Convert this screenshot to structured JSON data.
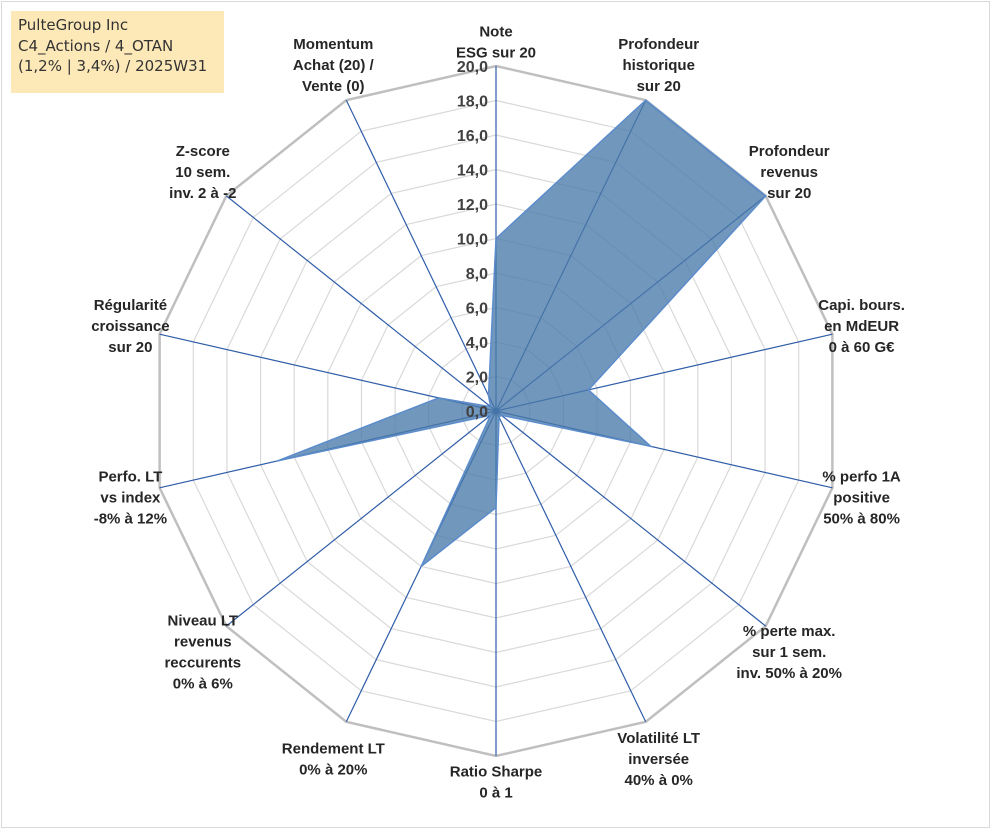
{
  "info_box": {
    "line1": "PulteGroup Inc",
    "line2": "C4_Actions / 4_OTAN",
    "line3": "(1,2% | 3,4%) / 2025W31"
  },
  "chart_data": {
    "type": "radar",
    "title": "",
    "rmin": 0,
    "rmax": 20,
    "tick_step": 2,
    "ticks": [
      "0,0",
      "2,0",
      "4,0",
      "6,0",
      "8,0",
      "10,0",
      "12,0",
      "14,0",
      "16,0",
      "18,0",
      "20,0"
    ],
    "axes": [
      {
        "label": [
          "Note",
          "ESG sur 20"
        ],
        "value": 10.0
      },
      {
        "label": [
          "Profondeur",
          "historique",
          "sur 20"
        ],
        "value": 20.0
      },
      {
        "label": [
          "Profondeur",
          "revenus",
          "sur 20"
        ],
        "value": 20.0
      },
      {
        "label": [
          "Capi. bours.",
          "en MdEUR",
          "0 à 60 G€"
        ],
        "value": 5.5
      },
      {
        "label": [
          "% perfo 1A",
          "positive",
          "50% à 80%"
        ],
        "value": 9.2
      },
      {
        "label": [
          "% perte max.",
          "sur 1 sem.",
          "inv. 50% à 20%"
        ],
        "value": 0.4
      },
      {
        "label": [
          "Volatilité LT",
          "inversée",
          "40% à 0%"
        ],
        "value": 0.4
      },
      {
        "label": [
          "Ratio Sharpe",
          "0 à 1"
        ],
        "value": 5.6
      },
      {
        "label": [
          "Rendement LT",
          "0% à 20%"
        ],
        "value": 10.0
      },
      {
        "label": [
          "Niveau LT",
          "revenus",
          "reccurents",
          "0% à 6%"
        ],
        "value": 0.4
      },
      {
        "label": [
          "Perfo. LT",
          "vs index",
          "-8% à 12%"
        ],
        "value": 13.0
      },
      {
        "label": [
          "Régularité",
          "croissance",
          "sur 20"
        ],
        "value": 3.4
      },
      {
        "label": [
          "Z-score",
          "10 sem.",
          "inv. 2 à -2"
        ],
        "value": 0.4
      },
      {
        "label": [
          "Momentum",
          "Achat (20) /",
          "Vente (0)"
        ],
        "value": 1.0
      }
    ],
    "colors": {
      "fill": "#4a7aa9",
      "fill_stroke": "#5b8ccc",
      "axis_line": "#2f5da8",
      "grid_outer": "#bfbfbf",
      "grid_inner": "#d9d9d9"
    },
    "grid": true,
    "legend": "none"
  }
}
